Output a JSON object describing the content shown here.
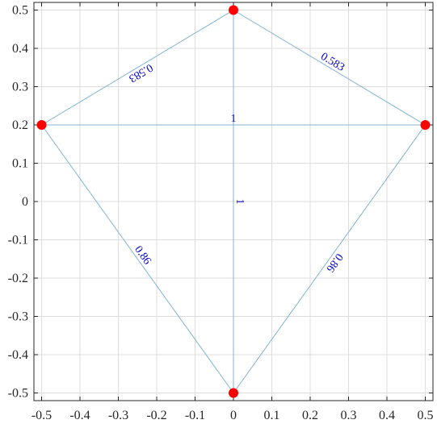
{
  "chart_data": {
    "type": "graph",
    "xlim": [
      -0.52,
      0.52
    ],
    "ylim": [
      -0.52,
      0.52
    ],
    "xticks": [
      -0.5,
      -0.4,
      -0.3,
      -0.2,
      -0.1,
      0,
      0.1,
      0.2,
      0.3,
      0.4,
      0.5
    ],
    "yticks": [
      -0.5,
      -0.4,
      -0.3,
      -0.2,
      -0.1,
      0,
      0.1,
      0.2,
      0.3,
      0.4,
      0.5
    ],
    "xtick_labels": [
      "-0.5",
      "-0.4",
      "-0.3",
      "-0.2",
      "-0.1",
      "0",
      "0.1",
      "0.2",
      "0.3",
      "0.4",
      "0.5"
    ],
    "ytick_labels": [
      "-0.5",
      "-0.4",
      "-0.3",
      "-0.2",
      "-0.1",
      "0",
      "0.1",
      "0.2",
      "0.3",
      "0.4",
      "0.5"
    ],
    "grid": true,
    "nodes": [
      {
        "x": 0,
        "y": 0.5
      },
      {
        "x": -0.5,
        "y": 0.2
      },
      {
        "x": 0.5,
        "y": 0.2
      },
      {
        "x": 0,
        "y": -0.5
      }
    ],
    "edges": [
      {
        "from": 0,
        "to": 1,
        "label": "0.583"
      },
      {
        "from": 0,
        "to": 2,
        "label": "0.583"
      },
      {
        "from": 1,
        "to": 2,
        "label": "1"
      },
      {
        "from": 0,
        "to": 3,
        "label": "1"
      },
      {
        "from": 1,
        "to": 3,
        "label": "0.86"
      },
      {
        "from": 2,
        "to": 3,
        "label": "0.86"
      }
    ],
    "colors": {
      "node": "#ff0000",
      "edge": "#7fb2d6",
      "edge_label": "#0000cc",
      "grid": "#dcdcdc",
      "axis": "#262626"
    }
  }
}
